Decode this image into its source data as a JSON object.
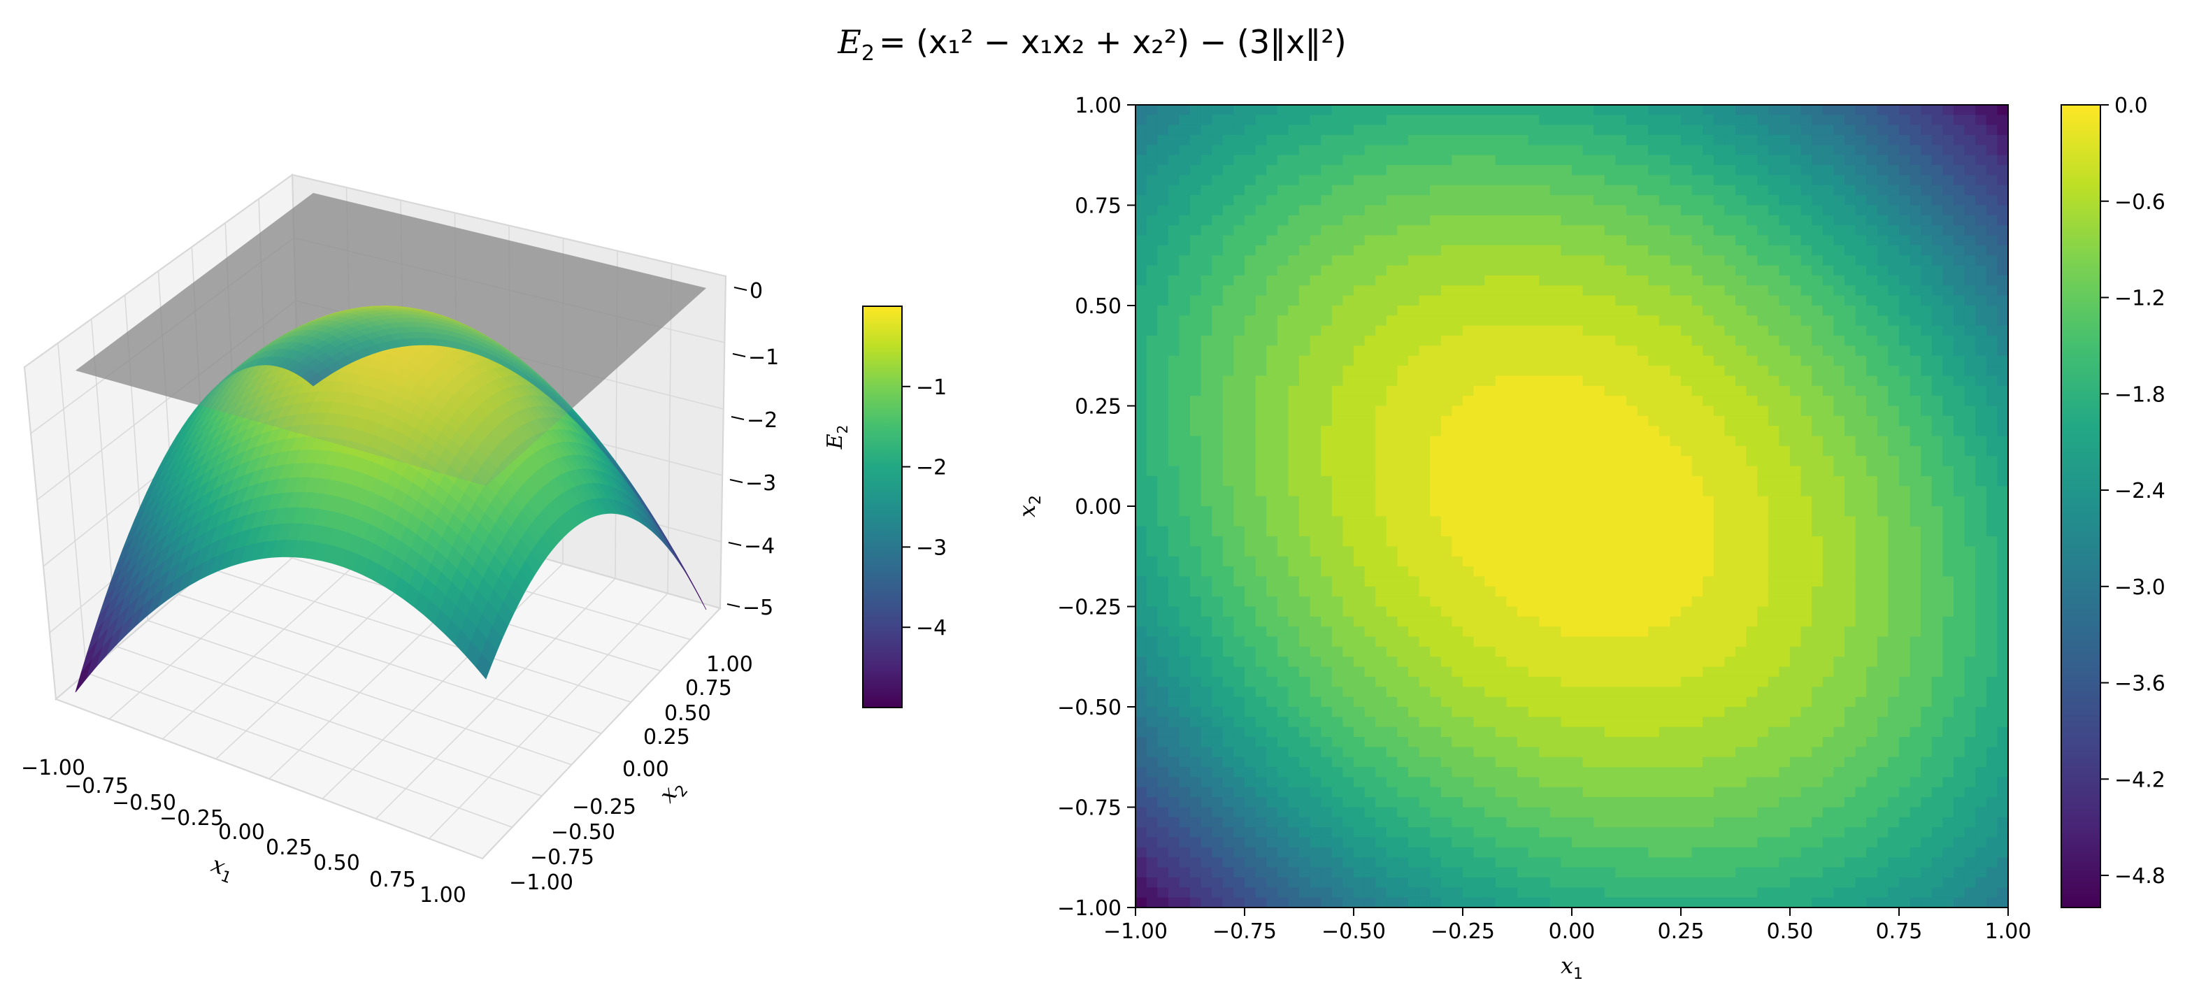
{
  "title": {
    "lhs": "E",
    "lhs_sub": "2",
    "rhs": "= (x₁² − x₁x₂ + x₂²) − (3‖x‖²)"
  },
  "chart_data": [
    {
      "type": "surface",
      "function": "E2(x1,x2) = (x1^2 - x1*x2 + x2^2) - 3*(x1^2 + x2^2)",
      "xlabel": "x",
      "xlabel_sub": "1",
      "ylabel": "x",
      "ylabel_sub": "2",
      "xlim": [
        -1.0,
        1.0
      ],
      "ylim": [
        -1.0,
        1.0
      ],
      "zlim": [
        -5,
        0
      ],
      "x_ticks": [
        "−1.00",
        "−0.75",
        "−0.50",
        "−0.25",
        "0.00",
        "0.25",
        "0.50",
        "0.75",
        "1.00"
      ],
      "y_ticks": [
        "−1.00",
        "−0.75",
        "−0.50",
        "−0.25",
        "0.00",
        "0.25",
        "0.50",
        "0.75",
        "1.00"
      ],
      "z_ticks": [
        "0",
        "−1",
        "−2",
        "−3",
        "−4",
        "−5"
      ],
      "reference_plane": {
        "z": 0,
        "color": "#808080"
      },
      "colormap": "viridis",
      "grid": true,
      "colorbar": {
        "label": "E",
        "label_sub": "2",
        "range": [
          -5.0,
          -0.0
        ],
        "ticks": [
          "−1",
          "−2",
          "−3",
          "−4"
        ],
        "tick_values": [
          -1,
          -2,
          -3,
          -4
        ]
      }
    },
    {
      "type": "heatmap",
      "function": "E2(x1,x2) = (x1^2 - x1*x2 + x2^2) - 3*(x1^2 + x2^2)",
      "xlabel": "x",
      "xlabel_sub": "1",
      "ylabel": "x",
      "ylabel_sub": "2",
      "xlim": [
        -1.0,
        1.0
      ],
      "ylim": [
        -1.0,
        1.0
      ],
      "x_ticks": [
        "−1.00",
        "−0.75",
        "−0.50",
        "−0.25",
        "0.00",
        "0.25",
        "0.50",
        "0.75",
        "1.00"
      ],
      "y_ticks": [
        "1.00",
        "0.75",
        "0.50",
        "0.25",
        "0.00",
        "−0.25",
        "−0.50",
        "−0.75",
        "−1.00"
      ],
      "tick_values": [
        -1.0,
        -0.75,
        -0.5,
        -0.25,
        0.0,
        0.25,
        0.5,
        0.75,
        1.0
      ],
      "colormap": "viridis",
      "colorbar": {
        "range": [
          -5.0,
          0.0
        ],
        "ticks": [
          "0.0",
          "−0.6",
          "−1.2",
          "−1.8",
          "−2.4",
          "−3.0",
          "−3.6",
          "−4.2",
          "−4.8"
        ],
        "tick_values": [
          0.0,
          -0.6,
          -1.2,
          -1.8,
          -2.4,
          -3.0,
          -3.6,
          -4.2,
          -4.8
        ]
      }
    }
  ]
}
